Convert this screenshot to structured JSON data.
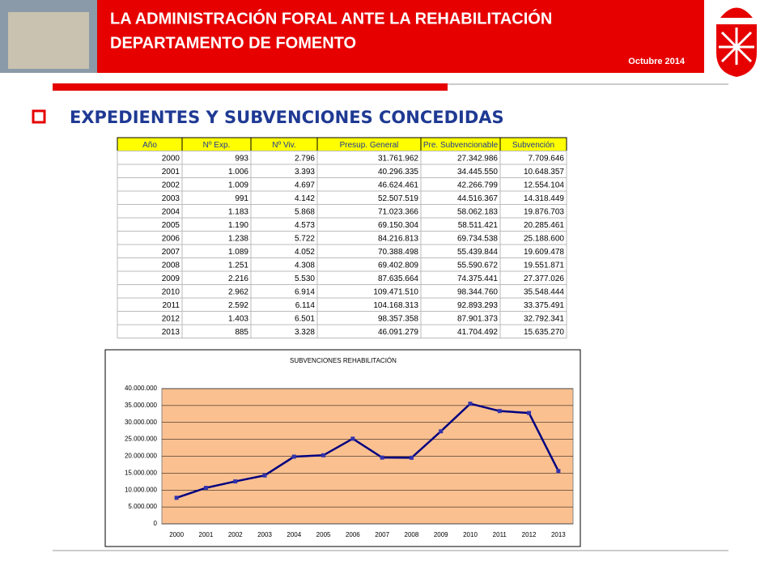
{
  "header": {
    "title_line1": "LA ADMINISTRACIÓN FORAL ANTE LA REHABILITACIÓN",
    "title_line2": "DEPARTAMENTO DE FOMENTO",
    "date": "Octubre 2014"
  },
  "section": {
    "heading": "EXPEDIENTES Y SUBVENCIONES CONCEDIDAS"
  },
  "table": {
    "headers": [
      "Año",
      "Nº Exp.",
      "Nº Viv.",
      "Presup. General",
      "Pre. Subvencionable",
      "Subvención"
    ],
    "rows": [
      [
        "2000",
        "993",
        "2.796",
        "31.761.962",
        "27.342.986",
        "7.709.646"
      ],
      [
        "2001",
        "1.006",
        "3.393",
        "40.296.335",
        "34.445.550",
        "10.648.357"
      ],
      [
        "2002",
        "1.009",
        "4.697",
        "46.624.461",
        "42.266.799",
        "12.554.104"
      ],
      [
        "2003",
        "991",
        "4.142",
        "52.507.519",
        "44.516.367",
        "14.318.449"
      ],
      [
        "2004",
        "1.183",
        "5.868",
        "71.023.366",
        "58.062.183",
        "19.876.703"
      ],
      [
        "2005",
        "1.190",
        "4.573",
        "69.150.304",
        "58.511.421",
        "20.285.461"
      ],
      [
        "2006",
        "1.238",
        "5.722",
        "84.216.813",
        "69.734.538",
        "25.188.600"
      ],
      [
        "2007",
        "1.089",
        "4.052",
        "70.388.498",
        "55.439.844",
        "19.609.478"
      ],
      [
        "2008",
        "1.251",
        "4.308",
        "69.402.809",
        "55.590.672",
        "19.551.871"
      ],
      [
        "2009",
        "2.216",
        "5.530",
        "87.635.664",
        "74.375.441",
        "27.377.026"
      ],
      [
        "2010",
        "2.962",
        "6.914",
        "109.471.510",
        "98.344.760",
        "35.548.444"
      ],
      [
        "2011",
        "2.592",
        "6.114",
        "104.168.313",
        "92.893.293",
        "33.375.491"
      ],
      [
        "2012",
        "1.403",
        "6.501",
        "98.357.358",
        "87.901.373",
        "32.792.341"
      ],
      [
        "2013",
        "885",
        "3.328",
        "46.091.279",
        "41.704.492",
        "15.635.270"
      ]
    ]
  },
  "chart_data": {
    "type": "line",
    "title": "SUBVENCIONES REHABILITACIÓN",
    "categories": [
      "2000",
      "2001",
      "2002",
      "2003",
      "2004",
      "2005",
      "2006",
      "2007",
      "2008",
      "2009",
      "2010",
      "2011",
      "2012",
      "2013"
    ],
    "values": [
      7709646,
      10648357,
      12554104,
      14318449,
      19876703,
      20285461,
      25188600,
      19609478,
      19551871,
      27377026,
      35548444,
      33375491,
      32792341,
      15635270
    ],
    "color": "#000080",
    "ylim": [
      0,
      40000000
    ],
    "yticks": [
      0,
      {
        "value": 5000000,
        "label": "5.000.000"
      },
      {
        "value": 10000000,
        "label": "10.000.000"
      },
      {
        "value": 15000000,
        "label": "15.000.000"
      },
      {
        "value": 20000000,
        "label": "20.000.000"
      },
      {
        "value": 25000000,
        "label": "25.000.000"
      },
      {
        "value": 30000000,
        "label": "30.000.000"
      },
      {
        "value": 35000000,
        "label": "35.000.000"
      },
      {
        "value": 40000000,
        "label": "40.000.000"
      }
    ],
    "grid": true
  }
}
